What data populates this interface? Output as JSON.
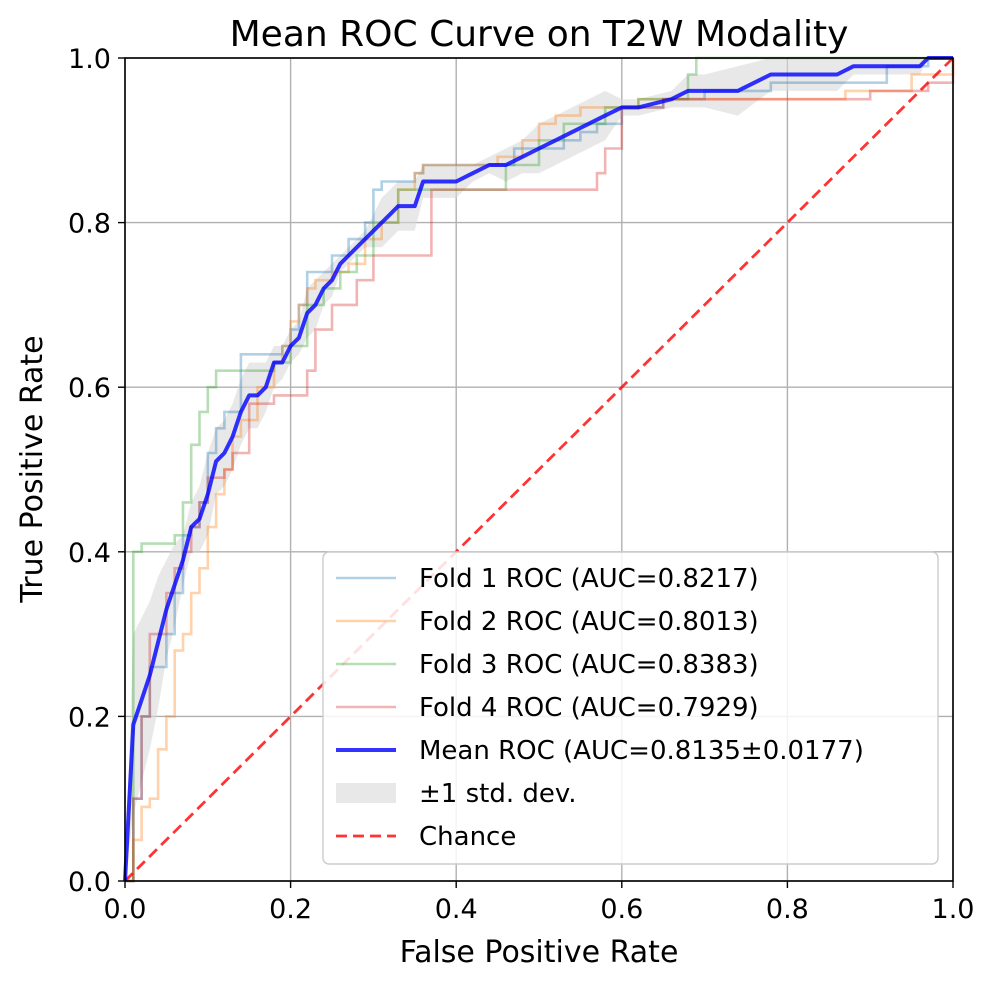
{
  "chart_data": {
    "type": "line",
    "title": "Mean ROC Curve on T2W Modality",
    "xlabel": "False Positive Rate",
    "ylabel": "True Positive Rate",
    "xlim": [
      0,
      1
    ],
    "ylim": [
      0,
      1
    ],
    "xticks": [
      "0.0",
      "0.2",
      "0.4",
      "0.6",
      "0.8",
      "1.0"
    ],
    "yticks": [
      "0.0",
      "0.2",
      "0.4",
      "0.6",
      "0.8",
      "1.0"
    ],
    "grid": true,
    "legend_position": "lower-right",
    "series": [
      {
        "name": "Fold 1 ROC (AUC=0.8217)",
        "color": "#1f77b4",
        "style": "step",
        "x": [
          0,
          0.01,
          0.02,
          0.03,
          0.05,
          0.06,
          0.07,
          0.08,
          0.09,
          0.1,
          0.11,
          0.12,
          0.14,
          0.17,
          0.19,
          0.2,
          0.21,
          0.22,
          0.23,
          0.25,
          0.27,
          0.29,
          0.3,
          0.31,
          0.32,
          0.35,
          0.36,
          0.4,
          0.44,
          0.47,
          0.5,
          0.53,
          0.55,
          0.57,
          0.6,
          0.65,
          0.7,
          0.78,
          0.85,
          0.92,
          0.97,
          1.0
        ],
        "y": [
          0,
          0.1,
          0.2,
          0.26,
          0.3,
          0.35,
          0.42,
          0.43,
          0.46,
          0.52,
          0.55,
          0.57,
          0.64,
          0.64,
          0.65,
          0.67,
          0.7,
          0.74,
          0.74,
          0.76,
          0.78,
          0.8,
          0.84,
          0.85,
          0.85,
          0.86,
          0.87,
          0.87,
          0.87,
          0.89,
          0.89,
          0.9,
          0.91,
          0.92,
          0.94,
          0.95,
          0.96,
          0.97,
          0.97,
          0.99,
          1.0,
          1.0
        ]
      },
      {
        "name": "Fold 2 ROC (AUC=0.8013)",
        "color": "#ff7f0e",
        "style": "step",
        "x": [
          0,
          0.01,
          0.02,
          0.03,
          0.04,
          0.05,
          0.06,
          0.07,
          0.08,
          0.09,
          0.1,
          0.11,
          0.12,
          0.13,
          0.14,
          0.16,
          0.18,
          0.19,
          0.2,
          0.21,
          0.22,
          0.23,
          0.25,
          0.27,
          0.29,
          0.31,
          0.33,
          0.35,
          0.36,
          0.4,
          0.45,
          0.48,
          0.5,
          0.52,
          0.55,
          0.58,
          0.62,
          0.7,
          0.8,
          0.87,
          0.95,
          1.0
        ],
        "y": [
          0,
          0.05,
          0.09,
          0.1,
          0.16,
          0.2,
          0.28,
          0.3,
          0.35,
          0.38,
          0.43,
          0.47,
          0.5,
          0.54,
          0.56,
          0.6,
          0.63,
          0.65,
          0.68,
          0.7,
          0.72,
          0.73,
          0.74,
          0.75,
          0.78,
          0.8,
          0.84,
          0.86,
          0.87,
          0.87,
          0.88,
          0.9,
          0.92,
          0.93,
          0.94,
          0.94,
          0.95,
          0.95,
          0.95,
          0.96,
          0.98,
          1.0
        ]
      },
      {
        "name": "Fold 3 ROC (AUC=0.8383)",
        "color": "#2ca02c",
        "style": "step",
        "x": [
          0,
          0.01,
          0.02,
          0.05,
          0.06,
          0.07,
          0.08,
          0.09,
          0.1,
          0.11,
          0.12,
          0.14,
          0.18,
          0.2,
          0.22,
          0.24,
          0.26,
          0.28,
          0.3,
          0.33,
          0.36,
          0.42,
          0.46,
          0.5,
          0.53,
          0.58,
          0.62,
          0.65,
          0.68,
          0.69,
          0.78,
          0.9,
          1.0
        ],
        "y": [
          0,
          0.4,
          0.41,
          0.41,
          0.42,
          0.46,
          0.53,
          0.57,
          0.6,
          0.62,
          0.62,
          0.62,
          0.63,
          0.65,
          0.7,
          0.72,
          0.74,
          0.76,
          0.8,
          0.84,
          0.84,
          0.84,
          0.87,
          0.9,
          0.92,
          0.94,
          0.95,
          0.95,
          0.98,
          1.0,
          1.0,
          1.0,
          1.0
        ]
      },
      {
        "name": "Fold 4 ROC (AUC=0.7929)",
        "color": "#d62728",
        "style": "step",
        "x": [
          0,
          0.01,
          0.02,
          0.03,
          0.05,
          0.06,
          0.07,
          0.08,
          0.09,
          0.1,
          0.12,
          0.13,
          0.15,
          0.17,
          0.18,
          0.19,
          0.2,
          0.22,
          0.23,
          0.25,
          0.28,
          0.3,
          0.33,
          0.36,
          0.37,
          0.44,
          0.5,
          0.54,
          0.56,
          0.57,
          0.58,
          0.6,
          0.65,
          0.7,
          0.8,
          0.9,
          0.97,
          1.0
        ],
        "y": [
          0,
          0.1,
          0.2,
          0.3,
          0.35,
          0.38,
          0.4,
          0.43,
          0.46,
          0.49,
          0.5,
          0.52,
          0.58,
          0.58,
          0.59,
          0.59,
          0.59,
          0.62,
          0.67,
          0.7,
          0.73,
          0.76,
          0.76,
          0.76,
          0.84,
          0.84,
          0.84,
          0.84,
          0.84,
          0.86,
          0.89,
          0.94,
          0.95,
          0.95,
          0.95,
          0.96,
          0.97,
          1.0
        ]
      }
    ],
    "mean": {
      "name": "Mean ROC (AUC=0.8135±0.0177)",
      "color": "#0000ff",
      "x": [
        0,
        0.01,
        0.02,
        0.03,
        0.04,
        0.05,
        0.06,
        0.07,
        0.08,
        0.09,
        0.1,
        0.11,
        0.12,
        0.13,
        0.14,
        0.15,
        0.16,
        0.17,
        0.18,
        0.19,
        0.2,
        0.21,
        0.22,
        0.23,
        0.24,
        0.25,
        0.26,
        0.27,
        0.28,
        0.29,
        0.3,
        0.31,
        0.32,
        0.33,
        0.34,
        0.35,
        0.36,
        0.37,
        0.4,
        0.42,
        0.44,
        0.46,
        0.48,
        0.5,
        0.52,
        0.54,
        0.56,
        0.58,
        0.6,
        0.62,
        0.66,
        0.68,
        0.7,
        0.74,
        0.78,
        0.8,
        0.86,
        0.88,
        0.9,
        0.96,
        0.97,
        1.0
      ],
      "y": [
        0,
        0.19,
        0.22,
        0.25,
        0.29,
        0.33,
        0.36,
        0.39,
        0.43,
        0.44,
        0.47,
        0.51,
        0.52,
        0.54,
        0.57,
        0.59,
        0.59,
        0.6,
        0.63,
        0.63,
        0.65,
        0.66,
        0.69,
        0.7,
        0.72,
        0.73,
        0.75,
        0.76,
        0.77,
        0.78,
        0.79,
        0.8,
        0.81,
        0.82,
        0.82,
        0.82,
        0.85,
        0.85,
        0.85,
        0.86,
        0.87,
        0.87,
        0.88,
        0.89,
        0.9,
        0.91,
        0.92,
        0.93,
        0.94,
        0.94,
        0.95,
        0.96,
        0.96,
        0.96,
        0.98,
        0.98,
        0.98,
        0.99,
        0.99,
        0.99,
        1.0,
        1.0
      ]
    },
    "std_band": {
      "name": "±1 std. dev.",
      "color": "#d9d9d9",
      "x": [
        0,
        0.01,
        0.02,
        0.03,
        0.04,
        0.05,
        0.06,
        0.07,
        0.08,
        0.09,
        0.1,
        0.11,
        0.12,
        0.13,
        0.14,
        0.15,
        0.16,
        0.17,
        0.18,
        0.19,
        0.2,
        0.21,
        0.22,
        0.23,
        0.24,
        0.25,
        0.26,
        0.27,
        0.28,
        0.29,
        0.3,
        0.31,
        0.32,
        0.33,
        0.34,
        0.35,
        0.36,
        0.37,
        0.4,
        0.42,
        0.44,
        0.46,
        0.48,
        0.5,
        0.52,
        0.54,
        0.56,
        0.58,
        0.6,
        0.62,
        0.66,
        0.68,
        0.7,
        0.74,
        0.78,
        0.8,
        0.86,
        0.88,
        0.9,
        0.96,
        0.97,
        1.0
      ],
      "upper": [
        0,
        0.3,
        0.32,
        0.34,
        0.37,
        0.39,
        0.41,
        0.42,
        0.46,
        0.48,
        0.52,
        0.55,
        0.56,
        0.58,
        0.61,
        0.63,
        0.63,
        0.63,
        0.65,
        0.65,
        0.67,
        0.68,
        0.72,
        0.73,
        0.74,
        0.75,
        0.76,
        0.77,
        0.78,
        0.79,
        0.81,
        0.83,
        0.84,
        0.85,
        0.85,
        0.85,
        0.87,
        0.87,
        0.87,
        0.87,
        0.88,
        0.89,
        0.9,
        0.92,
        0.93,
        0.94,
        0.95,
        0.96,
        0.95,
        0.95,
        0.96,
        0.98,
        0.98,
        0.99,
        1.0,
        1.0,
        1.0,
        1.0,
        1.0,
        1.0,
        1.0,
        1.0
      ],
      "lower": [
        0,
        0.08,
        0.12,
        0.16,
        0.21,
        0.27,
        0.31,
        0.36,
        0.4,
        0.4,
        0.42,
        0.47,
        0.48,
        0.5,
        0.53,
        0.55,
        0.55,
        0.57,
        0.6,
        0.61,
        0.63,
        0.64,
        0.66,
        0.67,
        0.7,
        0.71,
        0.74,
        0.75,
        0.76,
        0.77,
        0.77,
        0.77,
        0.78,
        0.79,
        0.79,
        0.79,
        0.83,
        0.83,
        0.83,
        0.85,
        0.86,
        0.85,
        0.86,
        0.86,
        0.87,
        0.88,
        0.89,
        0.9,
        0.93,
        0.93,
        0.94,
        0.94,
        0.94,
        0.93,
        0.96,
        0.96,
        0.96,
        0.98,
        0.98,
        0.98,
        1.0,
        1.0
      ]
    },
    "chance": {
      "name": "Chance",
      "color": "#ff0000",
      "x": [
        0,
        1
      ],
      "y": [
        0,
        1
      ]
    },
    "legend": [
      "Fold 1 ROC (AUC=0.8217)",
      "Fold 2 ROC (AUC=0.8013)",
      "Fold 3 ROC (AUC=0.8383)",
      "Fold 4 ROC (AUC=0.7929)",
      "Mean ROC (AUC=0.8135±0.0177)",
      "±1 std. dev.",
      "Chance"
    ]
  }
}
